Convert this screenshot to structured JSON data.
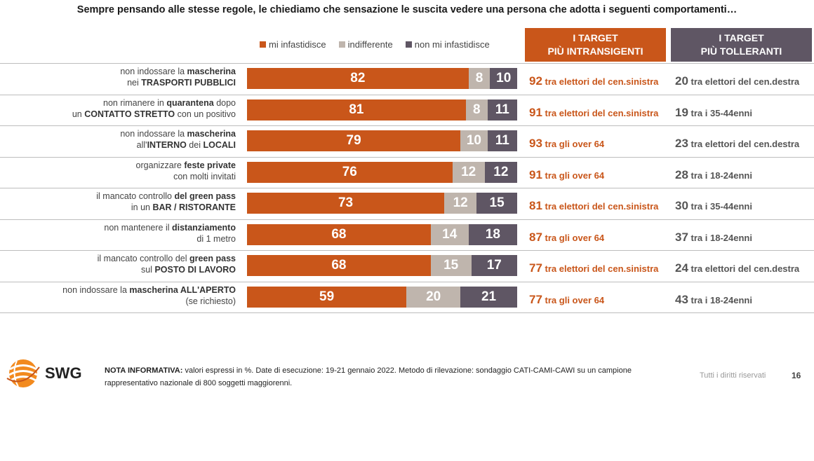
{
  "title": "Sempre pensando alle stesse regole, le chiediamo che sensazione le suscita vedere una persona che adotta i seguenti comportamenti…",
  "legend": [
    {
      "label": "mi infastidisce",
      "color": "#c9561a"
    },
    {
      "label": "indifferente",
      "color": "#bfb5ad"
    },
    {
      "label": "non mi infastidisce",
      "color": "#5f5664"
    }
  ],
  "headers": {
    "intransigenti": [
      "I TARGET",
      "PIÙ INTRANSIGENTI"
    ],
    "tolleranti": [
      "I TARGET",
      "PIÙ TOLLERANTI"
    ]
  },
  "chart_data": {
    "type": "bar",
    "orientation": "horizontal-stacked",
    "unit": "%",
    "categories": [
      "non indossare la mascherina nei TRASPORTI PUBBLICI",
      "non rimanere in quarantena dopo un CONTATTO STRETTO con un positivo",
      "non indossare la mascherina all'INTERNO dei LOCALI",
      "organizzare feste private con molti invitati",
      "il mancato controllo del green pass in un BAR / RISTORANTE",
      "non mantenere il distanziamento di 1 metro",
      "il mancato controllo del green pass sul POSTO DI LAVORO",
      "non indossare la mascherina ALL'APERTO (se richiesto)"
    ],
    "series": [
      {
        "name": "mi infastidisce",
        "values": [
          82,
          81,
          79,
          76,
          73,
          68,
          68,
          59
        ]
      },
      {
        "name": "indifferente",
        "values": [
          8,
          8,
          10,
          12,
          12,
          14,
          15,
          20
        ]
      },
      {
        "name": "non mi infastidisce",
        "values": [
          10,
          11,
          11,
          12,
          15,
          18,
          17,
          21
        ]
      }
    ],
    "targets_intransigenti": [
      {
        "value": 92,
        "text": "tra elettori del cen.sinistra"
      },
      {
        "value": 91,
        "text": "tra elettori del cen.sinistra"
      },
      {
        "value": 93,
        "text": "tra gli over 64"
      },
      {
        "value": 91,
        "text": "tra gli over 64"
      },
      {
        "value": 81,
        "text": "tra elettori del cen.sinistra"
      },
      {
        "value": 87,
        "text": "tra gli over 64"
      },
      {
        "value": 77,
        "text": "tra elettori del cen.sinistra"
      },
      {
        "value": 77,
        "text": "tra gli over 64"
      }
    ],
    "targets_tolleranti": [
      {
        "value": 20,
        "text": "tra elettori del cen.destra"
      },
      {
        "value": 19,
        "text": "tra i 35-44enni"
      },
      {
        "value": 23,
        "text": "tra elettori del cen.destra"
      },
      {
        "value": 28,
        "text": "tra i 18-24enni"
      },
      {
        "value": 30,
        "text": "tra i 35-44enni"
      },
      {
        "value": 37,
        "text": "tra i 18-24enni"
      },
      {
        "value": 24,
        "text": "tra elettori del cen.destra"
      },
      {
        "value": 43,
        "text": "tra i 18-24enni"
      }
    ]
  },
  "row_labels": [
    [
      [
        {
          "t": "non indossare la ",
          "b": false
        },
        {
          "t": "mascherina",
          "b": true
        }
      ],
      [
        {
          "t": "nei ",
          "b": false
        },
        {
          "t": "TRASPORTI PUBBLICI",
          "b": true
        }
      ]
    ],
    [
      [
        {
          "t": "non rimanere in ",
          "b": false
        },
        {
          "t": "quarantena",
          "b": true
        },
        {
          "t": " dopo",
          "b": false
        }
      ],
      [
        {
          "t": "un ",
          "b": false
        },
        {
          "t": "CONTATTO STRETTO",
          "b": true
        },
        {
          "t": " con un positivo",
          "b": false
        }
      ]
    ],
    [
      [
        {
          "t": "non indossare la ",
          "b": false
        },
        {
          "t": "mascherina",
          "b": true
        }
      ],
      [
        {
          "t": "all'",
          "b": false
        },
        {
          "t": "INTERNO",
          "b": true
        },
        {
          "t": " dei ",
          "b": false
        },
        {
          "t": "LOCALI",
          "b": true
        }
      ]
    ],
    [
      [
        {
          "t": "organizzare ",
          "b": false
        },
        {
          "t": "feste private",
          "b": true
        }
      ],
      [
        {
          "t": "con molti invitati",
          "b": false
        }
      ]
    ],
    [
      [
        {
          "t": "il mancato controllo ",
          "b": false
        },
        {
          "t": "del green pass",
          "b": true
        }
      ],
      [
        {
          "t": "in un ",
          "b": false
        },
        {
          "t": "BAR / RISTORANTE",
          "b": true
        }
      ]
    ],
    [
      [
        {
          "t": "non mantenere il ",
          "b": false
        },
        {
          "t": "distanziamento",
          "b": true
        }
      ],
      [
        {
          "t": "di 1 metro",
          "b": false
        }
      ]
    ],
    [
      [
        {
          "t": "il mancato controllo del ",
          "b": false
        },
        {
          "t": "green pass",
          "b": true
        }
      ],
      [
        {
          "t": "sul ",
          "b": false
        },
        {
          "t": "POSTO DI LAVORO",
          "b": true
        }
      ]
    ],
    [
      [
        {
          "t": "non indossare la ",
          "b": false
        },
        {
          "t": "mascherina ALL'APERTO",
          "b": true
        }
      ],
      [
        {
          "t": "(se richiesto)",
          "b": false
        }
      ]
    ]
  ],
  "footer": {
    "logo_text": "SWG",
    "note_bold": "NOTA INFORMATIVA:",
    "note_text": " valori espressi in %. Date di esecuzione: 19-21 gennaio 2022. Metodo di rilevazione: sondaggio CATI-CAMI-CAWI su un campione rappresentativo nazionale di 800 soggetti maggiorenni.",
    "rights": "Tutti i diritti riservati",
    "page": "16"
  }
}
